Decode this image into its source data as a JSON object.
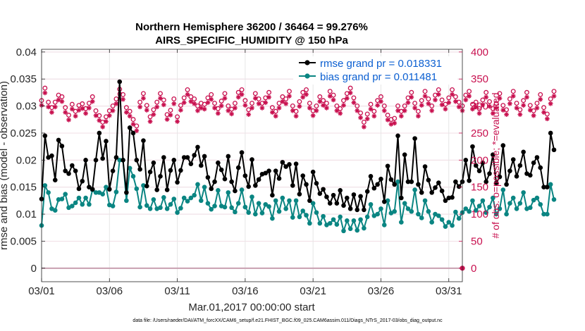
{
  "chart_data": {
    "type": "line",
    "title_line1": "Northern Hemisphere 36200 / 36464 = 99.276%",
    "title_line2": "AIRS_SPECIFIC_HUMIDITY @ 150 hPa",
    "xlabel": "Mar.01,2017 00:00:00 start",
    "ylabel_left": "rmse and bias (model - observation)",
    "ylabel_right": "# of obs: o=possible; *=evaluated",
    "x_ticks": [
      "03/01",
      "03/06",
      "03/11",
      "03/16",
      "03/21",
      "03/26",
      "03/31"
    ],
    "x_tick_days": [
      0,
      5,
      10,
      15,
      20,
      25,
      30
    ],
    "xlim": [
      0,
      31
    ],
    "ylim_left": [
      -0.0025,
      0.0405
    ],
    "ylim_right": [
      -25,
      405
    ],
    "y_ticks_left": [
      "0",
      "0.005",
      "0.01",
      "0.015",
      "0.02",
      "0.025",
      "0.03",
      "0.035",
      "0.04"
    ],
    "y_tick_values_left": [
      0,
      0.005,
      0.01,
      0.015,
      0.02,
      0.025,
      0.03,
      0.035,
      0.04
    ],
    "y_ticks_right": [
      "0",
      "50",
      "100",
      "150",
      "200",
      "250",
      "300",
      "350",
      "400"
    ],
    "y_tick_values_right": [
      0,
      50,
      100,
      150,
      200,
      250,
      300,
      350,
      400
    ],
    "legend": [
      "rmse grand pr = 0.018331",
      "bias grand pr = 0.011481"
    ],
    "colors": {
      "rmse": "#000000",
      "bias": "#0a8582",
      "obs": "#c8104f",
      "grid": "#e6e6e6",
      "zero": "#c8a0b0"
    },
    "step_days": 0.25,
    "series": [
      {
        "name": "rmse",
        "values": [
          0.0128,
          0.0245,
          0.0205,
          0.0208,
          0.0163,
          0.0237,
          0.0226,
          0.018,
          0.0175,
          0.019,
          0.018,
          0.0147,
          0.0161,
          0.02,
          0.015,
          0.0146,
          0.02,
          0.025,
          0.0203,
          0.0235,
          0.0146,
          0.018,
          0.0205,
          0.0345,
          0.02,
          0.014,
          0.026,
          0.025,
          0.02,
          0.0183,
          0.0236,
          0.0152,
          0.0178,
          0.0195,
          0.0145,
          0.017,
          0.0205,
          0.0145,
          0.0181,
          0.02,
          0.0159,
          0.0181,
          0.0205,
          0.0205,
          0.0193,
          0.0209,
          0.0224,
          0.019,
          0.0207,
          0.0168,
          0.0147,
          0.016,
          0.0195,
          0.0182,
          0.0165,
          0.0207,
          0.016,
          0.0143,
          0.0186,
          0.0214,
          0.0171,
          0.0151,
          0.0201,
          0.0153,
          0.0164,
          0.0174,
          0.0176,
          0.018,
          0.0135,
          0.018,
          0.0166,
          0.0196,
          0.0188,
          0.0192,
          0.0153,
          0.0193,
          0.0137,
          0.0171,
          0.0155,
          0.0125,
          0.0178,
          0.0157,
          0.0138,
          0.0146,
          0.0132,
          0.012,
          0.0135,
          0.012,
          0.0144,
          0.0116,
          0.013,
          0.011,
          0.0136,
          0.0108,
          0.0133,
          0.0108,
          0.0142,
          0.017,
          0.0148,
          0.0155,
          0.0165,
          0.0123,
          0.0189,
          0.0164,
          0.0155,
          0.0245,
          0.013,
          0.021,
          0.016,
          0.016,
          0.024,
          0.0155,
          0.014,
          0.0188,
          0.0163,
          0.014,
          0.0149,
          0.0158,
          0.0143,
          0.0125,
          0.013,
          0.0131,
          0.016,
          0.0151,
          0.016,
          0.02,
          0.0162,
          0.0225,
          0.019,
          0.018,
          0.0195,
          0.016,
          0.0175,
          0.021,
          0.0158,
          0.0169,
          0.0227,
          0.0155,
          0.018,
          0.0201,
          0.017,
          0.019,
          0.0215,
          0.0175,
          0.0172,
          0.0195,
          0.0205,
          0.0186,
          0.015,
          0.015,
          0.025,
          0.0219
        ]
      },
      {
        "name": "bias",
        "values": [
          0.0079,
          0.0153,
          0.014,
          0.011,
          0.0107,
          0.0127,
          0.0128,
          0.0137,
          0.0112,
          0.0115,
          0.0121,
          0.013,
          0.0118,
          0.013,
          0.0118,
          0.0145,
          0.014,
          0.014,
          0.0137,
          0.015,
          0.0117,
          0.0115,
          0.0141,
          0.02,
          0.02,
          0.0125,
          0.0185,
          0.017,
          0.0147,
          0.0113,
          0.0153,
          0.0116,
          0.011,
          0.0127,
          0.011,
          0.0112,
          0.0131,
          0.011,
          0.0118,
          0.0128,
          0.0103,
          0.0111,
          0.013,
          0.0124,
          0.013,
          0.0135,
          0.0155,
          0.0125,
          0.015,
          0.012,
          0.0109,
          0.0115,
          0.0144,
          0.0115,
          0.0113,
          0.014,
          0.0112,
          0.0104,
          0.012,
          0.0145,
          0.0113,
          0.0103,
          0.0132,
          0.01,
          0.012,
          0.0102,
          0.0118,
          0.0114,
          0.0092,
          0.0125,
          0.0105,
          0.013,
          0.011,
          0.0125,
          0.0094,
          0.0125,
          0.0095,
          0.0106,
          0.0098,
          0.0083,
          0.012,
          0.0103,
          0.0083,
          0.0096,
          0.008,
          0.0083,
          0.009,
          0.0081,
          0.0095,
          0.0069,
          0.0088,
          0.0073,
          0.0088,
          0.007,
          0.009,
          0.0074,
          0.0095,
          0.0118,
          0.0097,
          0.01,
          0.011,
          0.008,
          0.0125,
          0.0102,
          0.0105,
          0.016,
          0.0085,
          0.012,
          0.011,
          0.0105,
          0.0145,
          0.01,
          0.0093,
          0.0125,
          0.0105,
          0.0085,
          0.01,
          0.0097,
          0.009,
          0.0077,
          0.0085,
          0.0079,
          0.0104,
          0.0092,
          0.0103,
          0.011,
          0.0105,
          0.0125,
          0.0107,
          0.0115,
          0.0125,
          0.0103,
          0.0113,
          0.013,
          0.01,
          0.011,
          0.0145,
          0.01,
          0.012,
          0.013,
          0.011,
          0.012,
          0.014,
          0.011,
          0.0112,
          0.0126,
          0.013,
          0.0118,
          0.01,
          0.01,
          0.0155,
          0.0127
        ]
      },
      {
        "name": "obs_possible",
        "values": [
          305,
          328,
          302,
          292,
          302,
          315,
          312,
          292,
          278,
          298,
          285,
          296,
          299,
          290,
          300,
          312,
          286,
          277,
          265,
          275,
          286,
          295,
          308,
          326,
          316,
          292,
          285,
          270,
          258,
          302,
          318,
          296,
          275,
          288,
          302,
          318,
          306,
          279,
          287,
          308,
          275,
          296,
          310,
          325,
          312,
          308,
          295,
          300,
          298,
          310,
          316,
          300,
          290,
          304,
          318,
          295,
          289,
          300,
          320,
          325,
          305,
          288,
          300,
          318,
          308,
          300,
          310,
          320,
          292,
          285,
          300,
          312,
          308,
          322,
          295,
          285,
          303,
          320,
          325,
          300,
          286,
          295,
          312,
          305,
          300,
          322,
          315,
          295,
          290,
          305,
          318,
          328,
          310,
          295,
          282,
          265,
          280,
          298,
          285,
          305,
          312,
          295,
          278,
          270,
          272,
          295,
          285,
          295,
          310,
          320,
          300,
          285,
          305,
          322,
          308,
          295,
          315,
          325,
          306,
          298,
          310,
          325,
          312,
          302,
          295,
          315,
          322,
          298,
          302,
          290,
          306,
          320,
          303,
          290,
          300,
          318,
          296,
          288,
          308,
          322,
          300,
          288,
          305,
          320,
          296,
          286,
          300,
          316,
          292,
          280,
          308,
          322
        ]
      },
      {
        "name": "obs_evaluated",
        "values": [
          304,
          327,
          301,
          291,
          301,
          314,
          311,
          291,
          277,
          297,
          284,
          295,
          298,
          289,
          299,
          311,
          285,
          276,
          264,
          274,
          285,
          294,
          307,
          325,
          315,
          291,
          284,
          269,
          257,
          301,
          317,
          295,
          274,
          287,
          301,
          317,
          305,
          278,
          286,
          307,
          274,
          295,
          309,
          324,
          311,
          307,
          294,
          299,
          297,
          309,
          315,
          299,
          289,
          303,
          317,
          294,
          288,
          299,
          319,
          324,
          304,
          287,
          299,
          317,
          307,
          299,
          309,
          319,
          291,
          284,
          299,
          311,
          307,
          321,
          294,
          284,
          302,
          319,
          324,
          299,
          285,
          294,
          311,
          304,
          299,
          321,
          314,
          294,
          289,
          304,
          317,
          327,
          309,
          294,
          281,
          264,
          279,
          297,
          284,
          304,
          311,
          294,
          277,
          269,
          271,
          294,
          284,
          294,
          309,
          319,
          299,
          284,
          304,
          321,
          307,
          294,
          314,
          324,
          305,
          297,
          309,
          324,
          311,
          301,
          294,
          314,
          321,
          297,
          301,
          289,
          305,
          319,
          302,
          289,
          299,
          317,
          295,
          287,
          307,
          321,
          299,
          287,
          304,
          319,
          295,
          285,
          299,
          315,
          291,
          279,
          307,
          321
        ]
      }
    ],
    "footnote": "data file: /Users/raeder/DAI/ATM_forcXX/CAM6_setup/f.e21.FHIST_BGC.f09_025.CAM6assim.011/Diags_NTrS_2017-03/obs_diag_output.nc"
  }
}
